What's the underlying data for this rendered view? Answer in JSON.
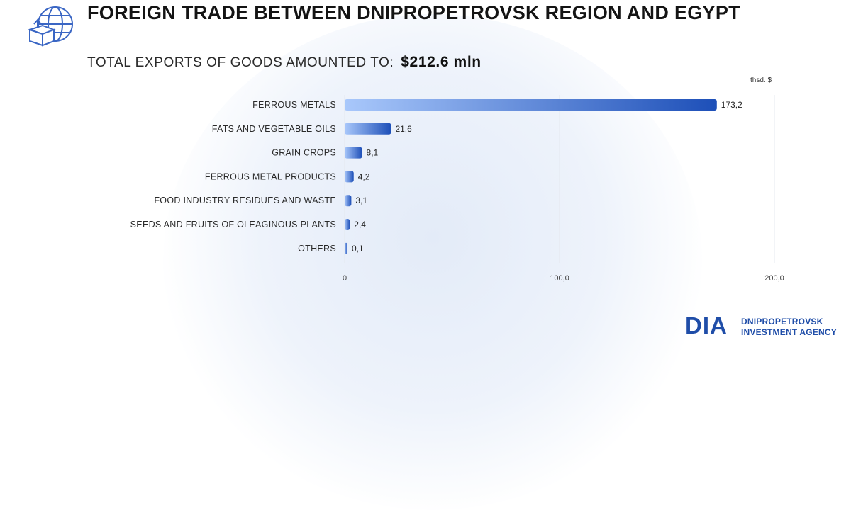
{
  "header": {
    "title": "FOREIGN TRADE BETWEEN DNIPROPETROVSK REGION AND EGYPT",
    "subtitle_label": "TOTAL EXPORTS OF GOODS AMOUNTED TO:",
    "subtitle_value": "$212.6 mln",
    "icon": "globe-export-box-icon"
  },
  "chart_data": {
    "type": "bar",
    "orientation": "horizontal",
    "unit_label": "thsd. $",
    "categories": [
      "FERROUS METALS",
      "FATS AND VEGETABLE OILS",
      "GRAIN CROPS",
      "FERROUS METAL PRODUCTS",
      "FOOD INDUSTRY RESIDUES AND WASTE",
      "SEEDS AND FRUITS OF OLEAGINOUS PLANTS",
      "OTHERS"
    ],
    "values": [
      173.2,
      21.6,
      8.1,
      4.2,
      3.1,
      2.4,
      0.1
    ],
    "value_labels": [
      "173,2",
      "21,6",
      "8,1",
      "4,2",
      "3,1",
      "2,4",
      "0,1"
    ],
    "xlim": [
      0,
      200
    ],
    "x_ticks": [
      0,
      100,
      200
    ],
    "x_tick_labels": [
      "0",
      "100,0",
      "200,0"
    ],
    "grid": true,
    "colors": {
      "bar_start": "#a9c8fb",
      "bar_end": "#1d4fb8",
      "grid": "#e4e8ef"
    }
  },
  "brand": {
    "logo_mark": "DIA",
    "name_line1": "DNIPROPETROVSK",
    "name_line2": "INVESTMENT AGENCY",
    "color": "#1f4da8"
  }
}
